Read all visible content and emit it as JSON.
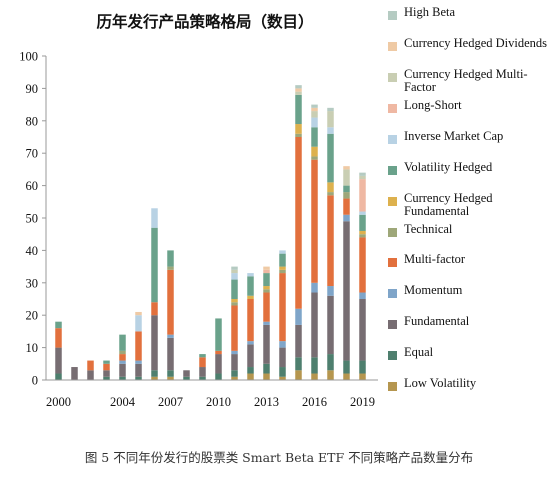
{
  "caption": "图 5 不同年份发行的股票类 Smart Beta ETF 不同策略产品数量分布",
  "chart_data": {
    "type": "bar",
    "stacked": true,
    "title": "历年发行产品策略格局（数目）",
    "xlabel": "",
    "ylabel": "",
    "ylim": [
      0,
      100
    ],
    "yticks": [
      0,
      10,
      20,
      30,
      40,
      50,
      60,
      70,
      80,
      90,
      100
    ],
    "grid": false,
    "legend_position": "right",
    "categories": [
      "2000",
      "2001",
      "2002",
      "2003",
      "2004",
      "2005",
      "2006",
      "2007",
      "2008",
      "2009",
      "2010",
      "2011",
      "2012",
      "2013",
      "2014",
      "2015",
      "2016",
      "2017",
      "2018",
      "2019"
    ],
    "x_tick_labels": [
      "2000",
      "2004",
      "2007",
      "2010",
      "2013",
      "2016",
      "2019"
    ],
    "series": [
      {
        "name": "Low Volatility",
        "color": "#b5964f",
        "values": [
          0,
          0,
          0,
          0,
          0,
          0,
          1,
          1,
          0,
          0,
          0,
          1,
          2,
          2,
          1,
          3,
          2,
          3,
          2,
          2
        ]
      },
      {
        "name": "Equal",
        "color": "#4e7f6e",
        "values": [
          2,
          0,
          0,
          1,
          1,
          1,
          2,
          2,
          1,
          1,
          2,
          2,
          2,
          3,
          3,
          4,
          5,
          5,
          4,
          4
        ]
      },
      {
        "name": "Fundamental",
        "color": "#776d72",
        "values": [
          8,
          4,
          3,
          2,
          4,
          4,
          17,
          10,
          2,
          3,
          6,
          5,
          7,
          12,
          6,
          10,
          20,
          18,
          43,
          19
        ]
      },
      {
        "name": "Momentum",
        "color": "#7fa5c9",
        "values": [
          0,
          0,
          0,
          0,
          1,
          1,
          0,
          1,
          0,
          0,
          0,
          1,
          1,
          1,
          2,
          5,
          3,
          3,
          2,
          2
        ]
      },
      {
        "name": "Multi-factor",
        "color": "#e2703d",
        "values": [
          6,
          0,
          3,
          2,
          2,
          9,
          4,
          20,
          0,
          3,
          1,
          14,
          13,
          9,
          21,
          53,
          38,
          28,
          5,
          17
        ]
      },
      {
        "name": "Technical",
        "color": "#9ea779",
        "values": [
          0,
          0,
          0,
          0,
          1,
          0,
          0,
          1,
          0,
          0,
          0,
          1,
          0,
          1,
          1,
          1,
          1,
          1,
          2,
          1
        ]
      },
      {
        "name": "Currency Hedged Fundamental",
        "color": "#ddb14e",
        "values": [
          0,
          0,
          0,
          0,
          0,
          0,
          0,
          0,
          0,
          0,
          0,
          1,
          1,
          1,
          1,
          3,
          3,
          3,
          0,
          1
        ]
      },
      {
        "name": "Volatility Hedged",
        "color": "#6aa28b",
        "values": [
          2,
          0,
          0,
          1,
          5,
          0,
          23,
          5,
          0,
          1,
          10,
          6,
          6,
          4,
          4,
          9,
          6,
          15,
          2,
          5
        ]
      },
      {
        "name": "Inverse Market Cap",
        "color": "#b8d2e4",
        "values": [
          0,
          0,
          0,
          0,
          0,
          5,
          6,
          0,
          0,
          0,
          0,
          2,
          1,
          0,
          1,
          0,
          3,
          2,
          0,
          1
        ]
      },
      {
        "name": "Long-Short",
        "color": "#efb8a3",
        "values": [
          0,
          0,
          0,
          0,
          0,
          0,
          0,
          0,
          0,
          0,
          0,
          0,
          0,
          1,
          0,
          0,
          0,
          0,
          0,
          10
        ]
      },
      {
        "name": "Currency Hedged Multi-Factor",
        "color": "#c9ceb3",
        "values": [
          0,
          0,
          0,
          0,
          0,
          0,
          0,
          0,
          0,
          0,
          0,
          1,
          0,
          0,
          0,
          1,
          2,
          5,
          5,
          1
        ]
      },
      {
        "name": "Currency Hedged Dividends",
        "color": "#efcaa5",
        "values": [
          0,
          0,
          0,
          0,
          0,
          1,
          0,
          0,
          0,
          0,
          0,
          0,
          0,
          1,
          0,
          1,
          1,
          0,
          1,
          0
        ]
      },
      {
        "name": "High Beta",
        "color": "#b5cbc2",
        "values": [
          0,
          0,
          0,
          0,
          0,
          0,
          0,
          0,
          0,
          0,
          0,
          1,
          0,
          0,
          0,
          1,
          1,
          1,
          0,
          1
        ]
      }
    ]
  }
}
